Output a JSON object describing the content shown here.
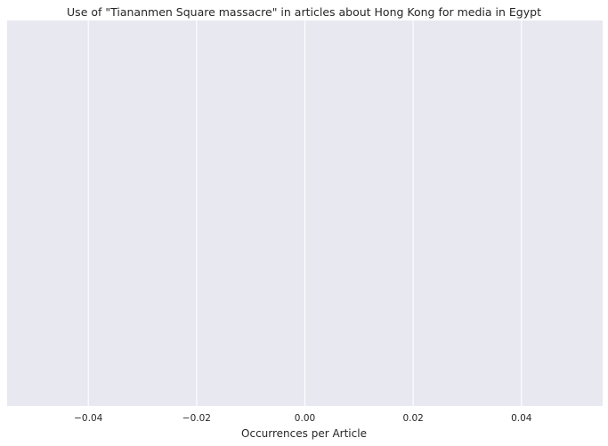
{
  "chart_data": {
    "type": "bar",
    "title": "Use of \"Tiananmen Square massacre\" in articles about Hong Kong for media in Egypt",
    "xlabel": "Occurrences per Article",
    "ylabel": "",
    "orientation": "horizontal",
    "categories": [],
    "values": [],
    "xlim": [
      -0.055,
      0.055
    ],
    "xticks": [
      -0.04,
      -0.02,
      0.0,
      0.02,
      0.04
    ],
    "xtick_labels": [
      "−0.04",
      "−0.02",
      "0.00",
      "0.02",
      "0.04"
    ],
    "grid": true,
    "legend": "none"
  },
  "colors": {
    "plot_background": "#e8e8f1",
    "grid": "#ffffff",
    "text": "#262626"
  }
}
